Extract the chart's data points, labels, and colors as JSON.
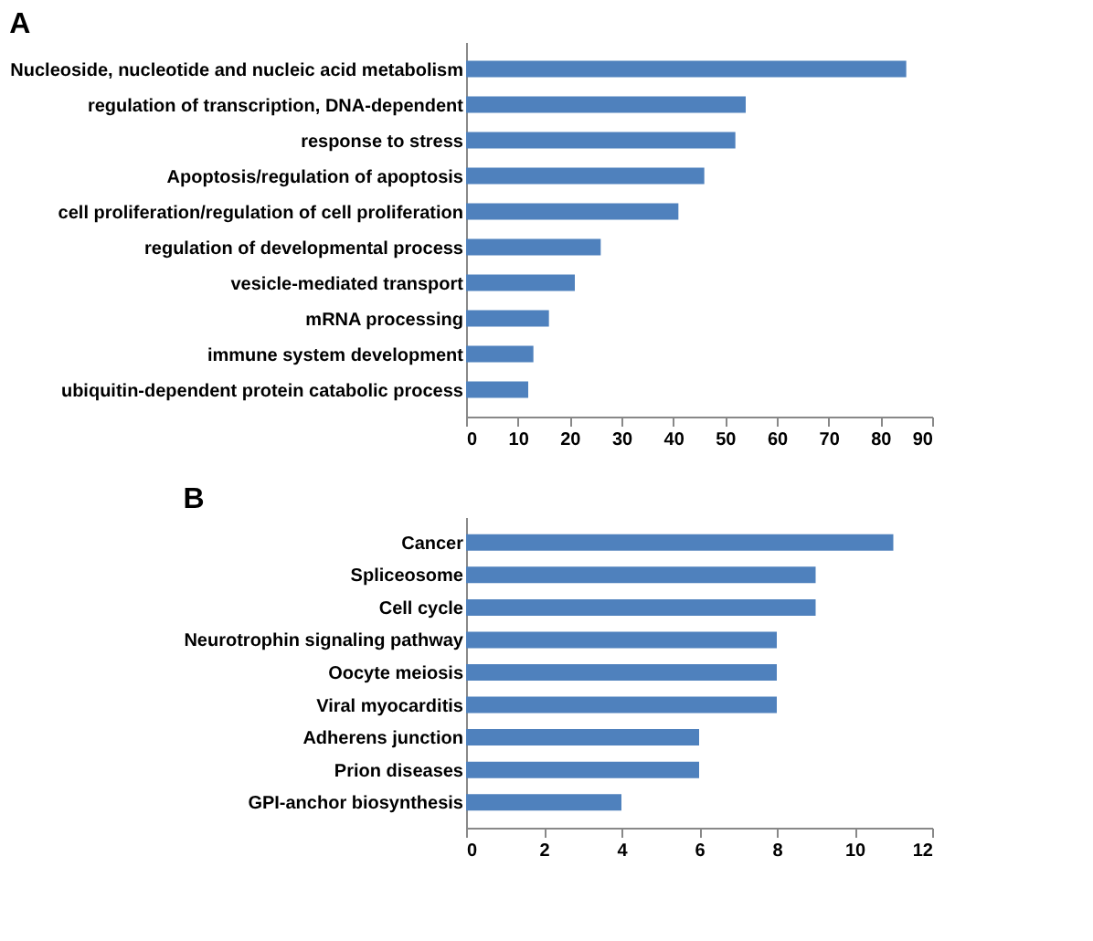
{
  "chart_data": [
    {
      "type": "bar",
      "orientation": "horizontal",
      "title": "A",
      "categories": [
        "Nucleoside, nucleotide and nucleic acid metabolism",
        "regulation of transcription, DNA-dependent",
        "response to stress",
        "Apoptosis/regulation of apoptosis",
        "cell proliferation/regulation of cell proliferation",
        "regulation of developmental process",
        "vesicle-mediated transport",
        "mRNA processing",
        "immune system development",
        "ubiquitin-dependent protein catabolic process"
      ],
      "values": [
        85,
        54,
        52,
        46,
        41,
        26,
        21,
        16,
        13,
        12
      ],
      "color": "#4f81bd",
      "xlim": [
        0,
        90
      ],
      "xticks": [
        0,
        10,
        20,
        30,
        40,
        50,
        60,
        70,
        80,
        90
      ],
      "grid": false
    },
    {
      "type": "bar",
      "orientation": "horizontal",
      "title": "B",
      "categories": [
        "Cancer",
        "Spliceosome",
        "Cell cycle",
        "Neurotrophin signaling pathway",
        "Oocyte meiosis",
        "Viral myocarditis",
        "Adherens junction",
        "Prion diseases",
        "GPI-anchor biosynthesis"
      ],
      "values": [
        11,
        9,
        9,
        8,
        8,
        8,
        6,
        6,
        4
      ],
      "color": "#4f81bd",
      "xlim": [
        0,
        12
      ],
      "xticks": [
        0,
        2,
        4,
        6,
        8,
        10,
        12
      ],
      "grid": false
    }
  ]
}
